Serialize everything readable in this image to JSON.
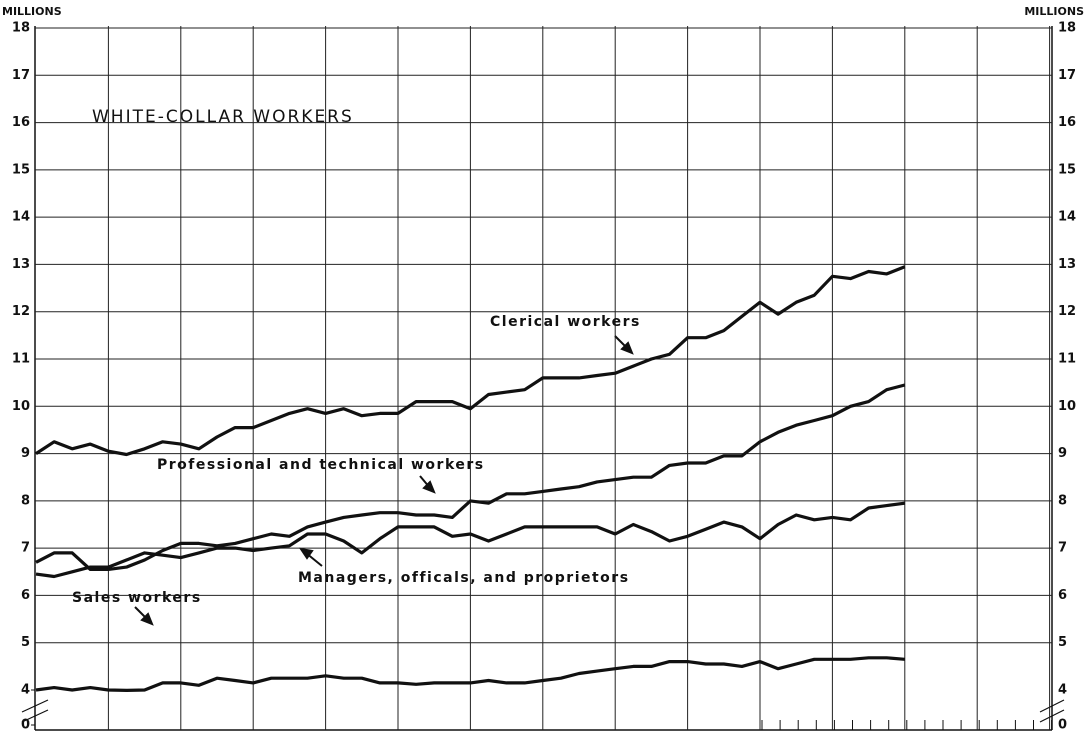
{
  "chart_data": {
    "type": "line",
    "title": "WHITE-COLLAR WORKERS",
    "y_label": "MILLIONS",
    "y2_label": "MILLIONS",
    "categories": [
      null,
      null,
      null,
      null,
      null,
      null,
      null,
      null,
      null,
      null,
      null,
      null,
      null,
      null,
      null,
      null,
      null,
      null,
      null,
      null,
      null,
      null,
      null,
      null,
      null,
      null,
      null,
      null,
      null,
      null,
      null,
      null,
      null,
      null,
      null,
      null,
      null,
      null,
      null,
      null,
      null,
      null,
      null,
      null,
      null,
      null,
      null,
      null,
      null
    ],
    "series": [
      {
        "name": "Clerical workers",
        "color": "#111111",
        "values": [
          9.0,
          9.25,
          9.1,
          9.2,
          9.05,
          8.98,
          9.1,
          9.25,
          9.2,
          9.1,
          9.35,
          9.55,
          9.55,
          9.7,
          9.85,
          9.95,
          9.85,
          9.95,
          9.8,
          9.85,
          9.85,
          10.1,
          10.1,
          10.1,
          9.95,
          10.25,
          10.3,
          10.35,
          10.6,
          10.6,
          10.6,
          10.65,
          10.7,
          10.85,
          11.0,
          11.1,
          11.45,
          11.45,
          11.6,
          11.9,
          12.2,
          11.95,
          12.2,
          12.35,
          12.75,
          12.7,
          12.85,
          12.8,
          12.95
        ]
      },
      {
        "name": "Professional and technical workers",
        "color": "#111111",
        "values": [
          6.7,
          6.9,
          6.9,
          6.55,
          6.55,
          6.6,
          6.75,
          6.95,
          7.1,
          7.1,
          7.05,
          7.1,
          7.2,
          7.3,
          7.25,
          7.45,
          7.55,
          7.65,
          7.7,
          7.75,
          7.75,
          7.7,
          7.7,
          7.65,
          8.0,
          7.95,
          8.15,
          8.15,
          8.2,
          8.25,
          8.3,
          8.4,
          8.45,
          8.5,
          8.5,
          8.75,
          8.8,
          8.8,
          8.95,
          8.95,
          9.25,
          9.45,
          9.6,
          9.7,
          9.8,
          10.0,
          10.1,
          10.35,
          10.45
        ]
      },
      {
        "name": "Managers, officals, and proprietors",
        "color": "#111111",
        "values": [
          6.45,
          6.4,
          6.5,
          6.6,
          6.6,
          6.75,
          6.9,
          6.85,
          6.8,
          6.9,
          7.0,
          7.0,
          6.95,
          7.0,
          7.05,
          7.3,
          7.3,
          7.15,
          6.9,
          7.2,
          7.45,
          7.45,
          7.45,
          7.25,
          7.3,
          7.15,
          7.3,
          7.45,
          7.45,
          7.45,
          7.45,
          7.45,
          7.3,
          7.5,
          7.35,
          7.15,
          7.25,
          7.4,
          7.55,
          7.45,
          7.2,
          7.5,
          7.7,
          7.6,
          7.65,
          7.6,
          7.85,
          7.9,
          7.95
        ]
      },
      {
        "name": "Sales workers",
        "color": "#111111",
        "values": [
          4.0,
          4.05,
          4.0,
          4.05,
          4.0,
          3.95,
          4.0,
          4.15,
          4.15,
          4.1,
          4.25,
          4.2,
          4.15,
          4.25,
          4.25,
          4.25,
          4.3,
          4.25,
          4.25,
          4.15,
          4.15,
          4.12,
          4.15,
          4.15,
          4.15,
          4.2,
          4.15,
          4.15,
          4.2,
          4.25,
          4.35,
          4.4,
          4.45,
          4.5,
          4.5,
          4.6,
          4.6,
          4.55,
          4.55,
          4.5,
          4.6,
          4.45,
          4.55,
          4.65,
          4.65,
          4.65,
          4.68,
          4.68,
          4.65
        ]
      }
    ],
    "ylim": [
      0,
      18
    ],
    "axis_break": [
      0,
      4
    ],
    "yticks": [
      0,
      4,
      5,
      6,
      7,
      8,
      9,
      10,
      11,
      12,
      13,
      14,
      15,
      16,
      17,
      18
    ],
    "grid": true
  }
}
